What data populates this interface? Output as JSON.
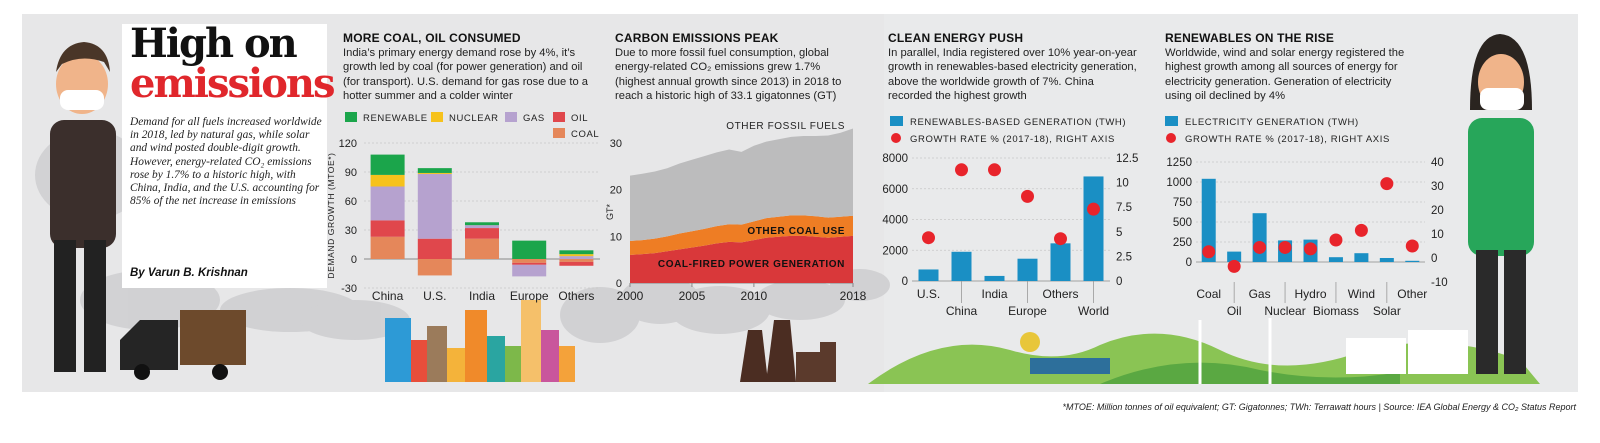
{
  "intro": {
    "title_line1": "High on",
    "title_line2": "emissions",
    "text": "Demand for all fuels increased worldwide in 2018, led by natural gas, while solar and wind posted double-digit growth. However, energy-related CO₂ emissions rose by 1.7% to a historic high, with China, India, and the U.S. accounting for 85% of the net increase in emissions",
    "byline": "By Varun B. Krishnan"
  },
  "footnote": "*MTOE: Million tonnes of oil equivalent; GT: Gigatonnes; TWh: Terrawatt hours | Source: IEA Global Energy & CO₂ Status Report",
  "colors": {
    "renewable": "#1ba54b",
    "nuclear": "#f6c21c",
    "gas": "#b6a2cf",
    "oil": "#e0474c",
    "coal": "#e5875a",
    "other_fossil": "#bcbcbd",
    "other_coal": "#ee7d24",
    "coal_power": "#d9383a",
    "bar_blue": "#1a8fc4",
    "dot_red": "#e8242b"
  },
  "chart_data": [
    {
      "type": "bar",
      "title": "MORE COAL, OIL CONSUMED",
      "description": "India’s primary energy demand rose by 4%, it’s growth led by coal (for power generation) and oil (for transport). U.S. demand for gas rose due to a hotter summer and a colder winter",
      "ylabel": "DEMAND GROWTH (MTOE*)",
      "ylim": [
        -30,
        120
      ],
      "yticks": [
        "120",
        "90",
        "60",
        "30",
        "0",
        "-30"
      ],
      "yticks_values": [
        120,
        90,
        60,
        30,
        0,
        -30
      ],
      "categories": [
        "China",
        "U.S.",
        "India",
        "Europe",
        "Others"
      ],
      "series": [
        {
          "name": "COAL",
          "values": [
            23,
            -17,
            21,
            -4,
            -3
          ]
        },
        {
          "name": "OIL",
          "values": [
            17,
            21,
            11,
            -2,
            -4
          ]
        },
        {
          "name": "GAS",
          "values": [
            35,
            67,
            3,
            -12,
            3
          ]
        },
        {
          "name": "NUCLEAR",
          "values": [
            12,
            1,
            0,
            0,
            2
          ]
        },
        {
          "name": "RENEWABLE",
          "values": [
            21,
            5,
            3,
            19,
            4
          ]
        }
      ],
      "legend": [
        "RENEWABLE",
        "NUCLEAR",
        "GAS",
        "OIL",
        "COAL"
      ]
    },
    {
      "type": "area",
      "title": "CARBON EMISSIONS PEAK",
      "description": "Due to more fossil fuel consumption, global energy-related CO₂ emissions grew 1.7% (highest annual growth since 2013) in 2018 to reach a historic high of 33.1 gigatonnes (GT)",
      "ylabel": "GT*",
      "ylim": [
        0,
        30
      ],
      "yticks": [
        "30",
        "20",
        "10",
        "0"
      ],
      "yticks_values": [
        30,
        20,
        10,
        0
      ],
      "xticks": [
        "2000",
        "2005",
        "2010",
        "2018"
      ],
      "xticks_values": [
        2000,
        2005,
        2010,
        2018
      ],
      "x": [
        2000,
        2001,
        2002,
        2003,
        2004,
        2005,
        2006,
        2007,
        2008,
        2009,
        2010,
        2011,
        2012,
        2013,
        2014,
        2015,
        2016,
        2017,
        2018
      ],
      "series": [
        {
          "name": "COAL-FIRED POWER GENERATION",
          "values": [
            6,
            6.2,
            6.4,
            6.8,
            7.2,
            7.6,
            8,
            8.5,
            8.8,
            8.7,
            9.2,
            9.7,
            9.9,
            10.1,
            10.1,
            9.9,
            9.7,
            9.9,
            10.1
          ]
        },
        {
          "name": "OTHER COAL USE",
          "values": [
            3,
            3.0,
            3.1,
            3.2,
            3.4,
            3.5,
            3.6,
            3.7,
            3.8,
            3.8,
            4.0,
            4.2,
            4.3,
            4.4,
            4.4,
            4.4,
            4.3,
            4.3,
            4.3
          ]
        },
        {
          "name": "OTHER FOSSIL FUELS",
          "values": [
            14,
            14.2,
            14.4,
            14.6,
            15.0,
            15.3,
            15.6,
            15.8,
            16.0,
            15.6,
            16.2,
            16.4,
            16.6,
            16.8,
            17.0,
            17.2,
            17.6,
            18.0,
            18.7
          ]
        }
      ]
    },
    {
      "type": "bar",
      "title": "CLEAN ENERGY PUSH",
      "description": "In parallel, India registered over 10% year-on-year growth in renewables-based electricity generation, above the worldwide growth of 7%. China recorded the highest growth",
      "legend": [
        "RENEWABLES-BASED GENERATION (TWH)",
        "GROWTH RATE % (2017-18), RIGHT AXIS"
      ],
      "ylim": [
        0,
        8000
      ],
      "yticks": [
        "8000",
        "6000",
        "4000",
        "2000",
        "0"
      ],
      "yticks_values": [
        8000,
        6000,
        4000,
        2000,
        0
      ],
      "y2lim": [
        0,
        12.5
      ],
      "y2ticks": [
        "12.5",
        "10",
        "7.5",
        "5",
        "2.5",
        "0"
      ],
      "y2ticks_values": [
        12.5,
        10,
        7.5,
        5,
        2.5,
        0
      ],
      "categories": [
        "U.S.",
        "China",
        "India",
        "Europe",
        "Others",
        "World"
      ],
      "series": [
        {
          "name": "RENEWABLES-BASED GENERATION (TWH)",
          "values": [
            750,
            1900,
            330,
            1450,
            2450,
            6800
          ]
        },
        {
          "name": "GROWTH RATE % (2017-18), RIGHT AXIS",
          "values": [
            4.4,
            11.3,
            11.3,
            8.6,
            4.3,
            7.3
          ]
        }
      ]
    },
    {
      "type": "bar",
      "title": "RENEWABLES ON THE RISE",
      "description": "Worldwide, wind and solar energy registered the highest growth among all sources of energy for electricity generation. Generation of electricity using oil declined by 4%",
      "legend": [
        "ELECTRICITY GENERATION (TWH)",
        "GROWTH RATE % (2017-18), RIGHT AXIS"
      ],
      "ylim": [
        -250,
        1250
      ],
      "yticks": [
        "1250",
        "1000",
        "750",
        "500",
        "250",
        "0"
      ],
      "yticks_values": [
        1250,
        1000,
        750,
        500,
        250,
        0
      ],
      "y2lim": [
        -10,
        40
      ],
      "y2ticks": [
        "40",
        "30",
        "20",
        "10",
        "0",
        "-10"
      ],
      "y2ticks_values": [
        40,
        30,
        20,
        10,
        0,
        -10
      ],
      "categories": [
        "Coal",
        "Oil",
        "Gas",
        "Nuclear",
        "Hydro",
        "Biomass",
        "Wind",
        "Solar",
        "Other"
      ],
      "series": [
        {
          "name": "ELECTRICITY GENERATION (TWH)",
          "values": [
            1040,
            130,
            610,
            270,
            280,
            60,
            110,
            50,
            15
          ]
        },
        {
          "name": "GROWTH RATE % (2017-18), RIGHT AXIS",
          "values": [
            2.6,
            -3.5,
            4.4,
            4.4,
            3.8,
            7.5,
            11.5,
            31,
            5
          ]
        }
      ]
    }
  ]
}
